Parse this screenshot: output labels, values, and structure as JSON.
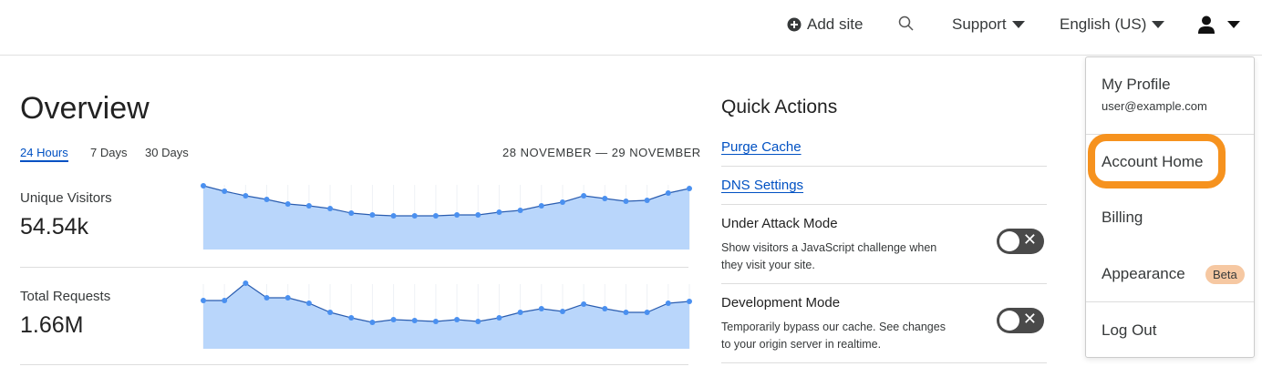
{
  "topbar": {
    "add_site": "Add site",
    "support": "Support",
    "language": "English (US)"
  },
  "overview": {
    "title": "Overview",
    "ranges": [
      {
        "label": "24 Hours",
        "active": true
      },
      {
        "label": "7 Days",
        "active": false
      },
      {
        "label": "30 Days",
        "active": false
      }
    ],
    "date_range": "28 NOVEMBER — 29 NOVEMBER",
    "metrics": [
      {
        "label": "Unique Visitors",
        "value": "54.54k"
      },
      {
        "label": "Total Requests",
        "value": "1.66M"
      }
    ]
  },
  "chart_data": [
    {
      "type": "area",
      "series": [
        {
          "values": [
            70,
            64,
            59,
            55,
            50,
            48,
            45,
            40,
            38,
            37,
            37,
            37,
            38,
            38,
            41,
            43,
            48,
            52,
            59,
            56,
            53,
            54,
            62,
            67
          ]
        }
      ],
      "color": "#4a90f0",
      "fill": "#b9d6fb"
    },
    {
      "type": "area",
      "series": [
        {
          "values": [
            53,
            53,
            72,
            56,
            56,
            50,
            40,
            34,
            29,
            32,
            31,
            30,
            32,
            30,
            34,
            40,
            44,
            41,
            49,
            44,
            40,
            40,
            50,
            52
          ]
        }
      ],
      "color": "#4a90f0",
      "fill": "#b9d6fb"
    }
  ],
  "quick_actions": {
    "title": "Quick Actions",
    "links": [
      "Purge Cache",
      "DNS Settings"
    ],
    "toggles": [
      {
        "title": "Under Attack Mode",
        "desc": "Show visitors a JavaScript challenge when they visit your site.",
        "on": false
      },
      {
        "title": "Development Mode",
        "desc": "Temporarily bypass our cache. See changes to your origin server in realtime.",
        "on": false
      }
    ]
  },
  "user_menu": {
    "profile": "My Profile",
    "email": "user@example.com",
    "account_home": "Account Home",
    "billing": "Billing",
    "appearance": "Appearance",
    "beta": "Beta",
    "logout": "Log Out",
    "highlight_color": "#f6921e"
  }
}
